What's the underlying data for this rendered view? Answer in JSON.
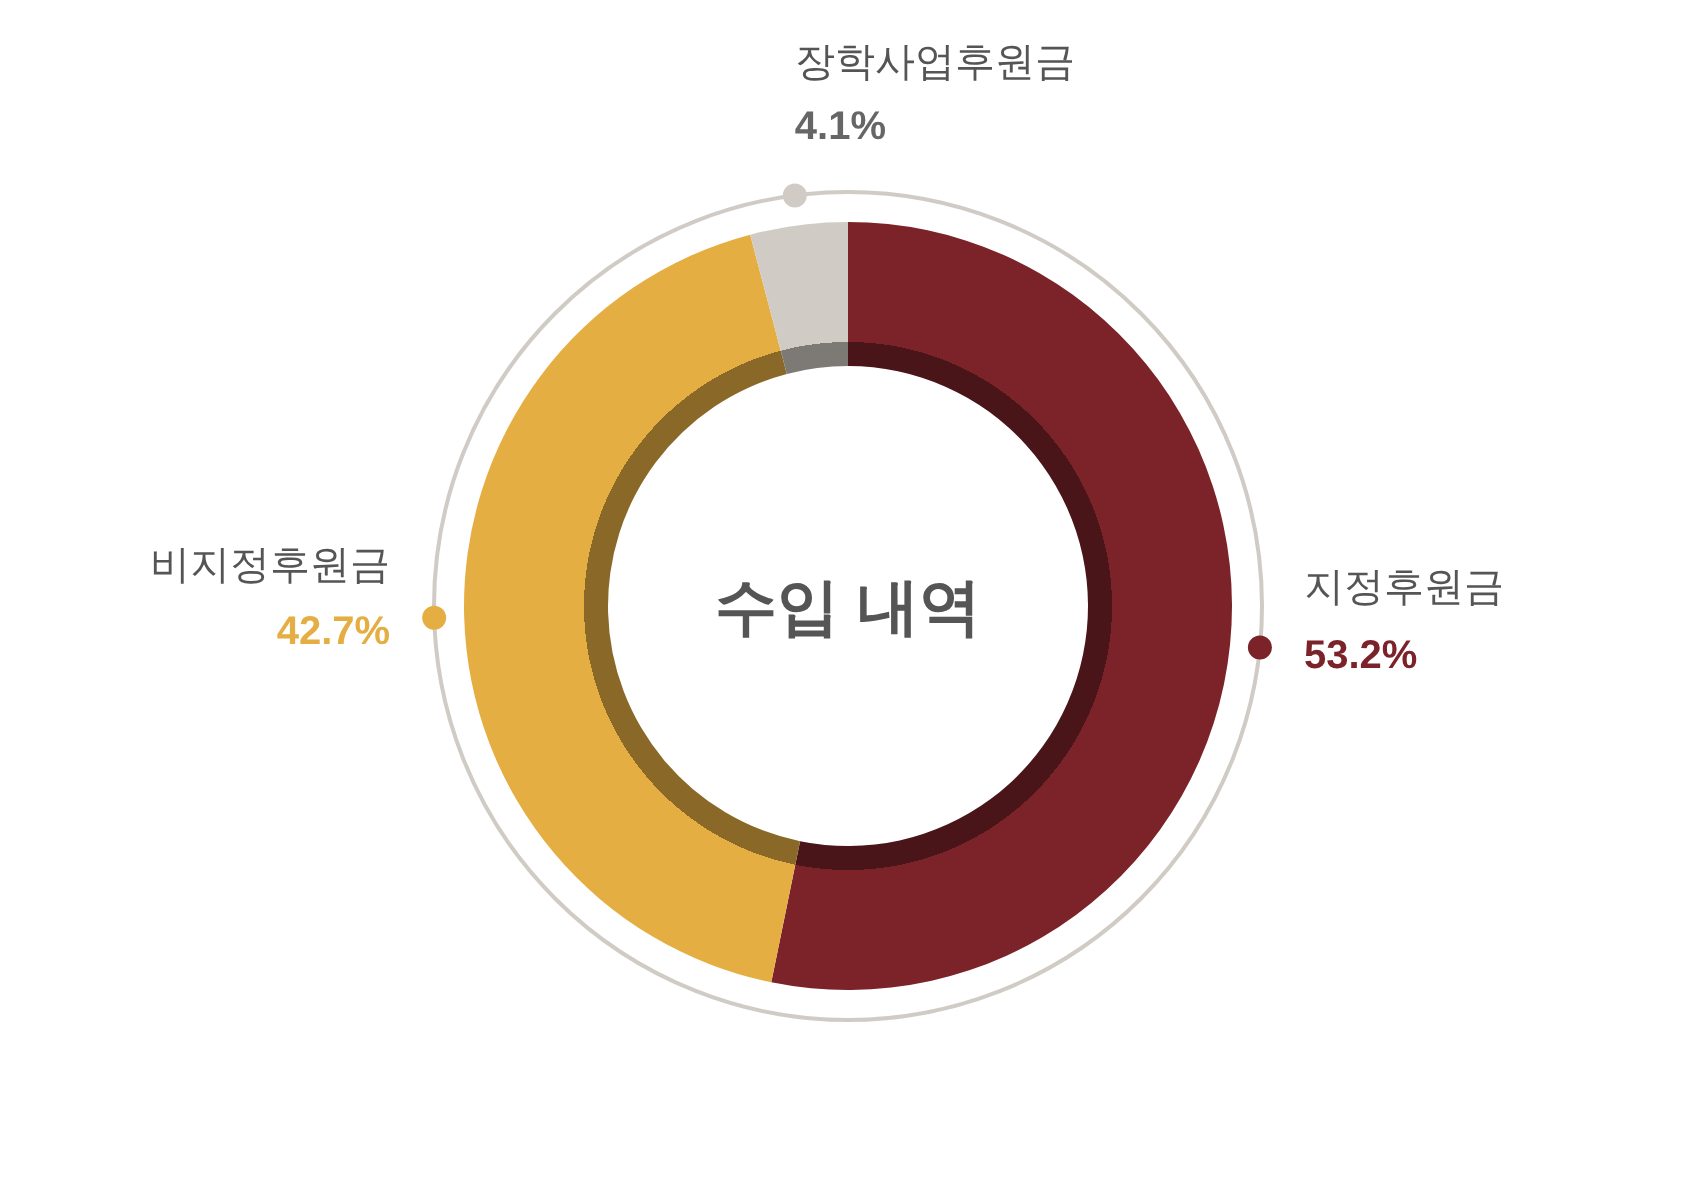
{
  "chart_data": {
    "type": "donut",
    "title": "수입 내역",
    "categories": [
      "지정후원금",
      "비지정후원금",
      "장학사업후원금"
    ],
    "values": [
      53.2,
      42.7,
      4.1
    ],
    "value_labels": [
      "53.2%",
      "42.7%",
      "4.1%"
    ],
    "colors": [
      "#7b2328",
      "#e5ae42",
      "#d0ccc5"
    ]
  }
}
